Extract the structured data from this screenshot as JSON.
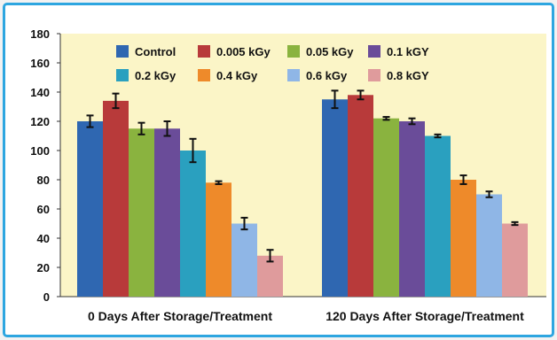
{
  "chart_data": {
    "type": "bar",
    "title": "",
    "xlabel": "",
    "ylabel": "",
    "ylim": [
      0,
      180
    ],
    "yticks": [
      0,
      20,
      40,
      60,
      80,
      100,
      120,
      140,
      160,
      180
    ],
    "grid": false,
    "legend_position": "top",
    "categories": [
      "0 Days After Storage/Treatment",
      "120 Days After Storage/Treatment"
    ],
    "series": [
      {
        "name": "Control",
        "color": "#2f67b1",
        "values": [
          120,
          135
        ],
        "errors": [
          4,
          6
        ]
      },
      {
        "name": "0.005 kGy",
        "color": "#b83a3a",
        "values": [
          134,
          138
        ],
        "errors": [
          5,
          3
        ]
      },
      {
        "name": "0.05 kGy",
        "color": "#8ab33f",
        "values": [
          115,
          122
        ],
        "errors": [
          4,
          1
        ]
      },
      {
        "name": "0.1 kGY",
        "color": "#6a4c99",
        "values": [
          115,
          120
        ],
        "errors": [
          5,
          2
        ]
      },
      {
        "name": "0.2 kGy",
        "color": "#2aa0bf",
        "values": [
          100,
          110
        ],
        "errors": [
          8,
          1
        ]
      },
      {
        "name": "0.4 kGy",
        "color": "#ee8a2a",
        "values": [
          78,
          80
        ],
        "errors": [
          1,
          3
        ]
      },
      {
        "name": "0.6 kGy",
        "color": "#8fb6e6",
        "values": [
          50,
          70
        ],
        "errors": [
          4,
          2
        ]
      },
      {
        "name": "0.8 kGY",
        "color": "#df9b9c",
        "values": [
          28,
          50
        ],
        "errors": [
          4,
          1
        ]
      }
    ],
    "background_color": "#fbf5c7"
  }
}
